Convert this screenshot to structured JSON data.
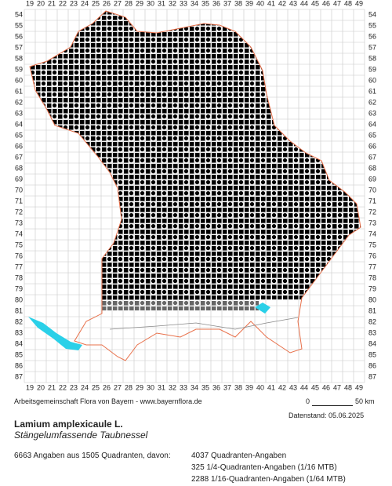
{
  "grid": {
    "columns": [
      19,
      20,
      21,
      22,
      23,
      24,
      25,
      26,
      27,
      28,
      29,
      30,
      31,
      32,
      33,
      34,
      35,
      36,
      37,
      38,
      39,
      40,
      41,
      42,
      43,
      44,
      45,
      46,
      47,
      48,
      49
    ],
    "rows": [
      54,
      55,
      56,
      57,
      58,
      59,
      60,
      61,
      62,
      63,
      64,
      65,
      66,
      67,
      68,
      69,
      70,
      71,
      72,
      73,
      74,
      75,
      76,
      77,
      78,
      79,
      80,
      81,
      82,
      83,
      84,
      85,
      86,
      87
    ]
  },
  "footer": {
    "credit": "Arbeitsgemeinschaft Flora von Bayern - www.bayernflora.de",
    "scale_start": "0",
    "scale_end": "50 km",
    "date": "Datenstand: 05.06.2025",
    "species": "Lamium amplexicaule L.",
    "common_name": "Stängelumfassende Taubnessel",
    "summary": "6663 Angaben aus 1505 Quadranten, davon:",
    "counts": [
      "4037 Quadranten-Angaben",
      "325 1/4-Quadranten-Angaben (1/16 MTB)",
      "2288 1/16-Quadranten-Angaben (1/64 MTB)"
    ]
  }
}
